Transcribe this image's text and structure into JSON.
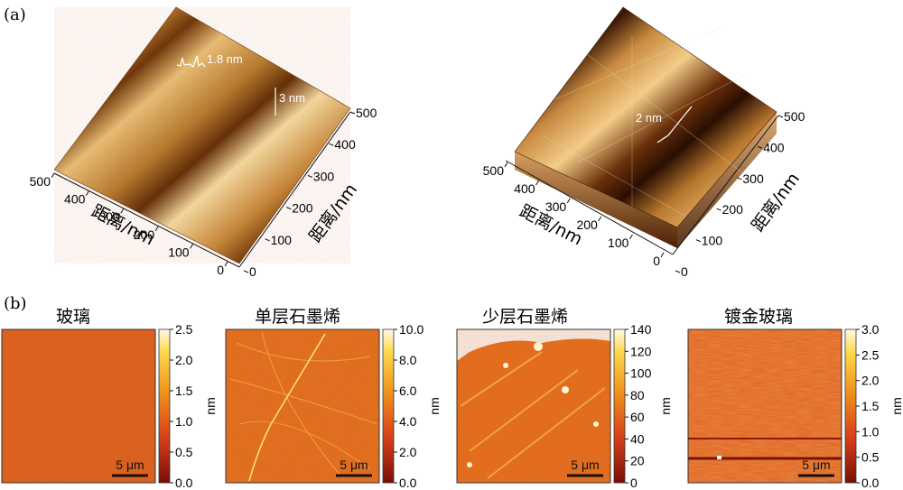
{
  "panel_a": {
    "label": "(a)",
    "left": {
      "annotations": [
        "1.8 nm",
        "3 nm"
      ],
      "axis_x": {
        "ticks": [
          "500",
          "400",
          "300",
          "200",
          "100",
          "0"
        ],
        "label": "距离/nm"
      },
      "axis_y": {
        "ticks": [
          "0",
          "100",
          "200",
          "300",
          "400",
          "500"
        ],
        "label": "距离/nm"
      }
    },
    "right": {
      "annotations": [
        "2 nm"
      ],
      "axis_x": {
        "ticks": [
          "500",
          "400",
          "300",
          "200",
          "100",
          "0"
        ],
        "label": "距离/nm"
      },
      "axis_y": {
        "ticks": [
          "0",
          "100",
          "200",
          "300",
          "400",
          "500"
        ],
        "label": "距离/nm"
      }
    }
  },
  "panel_b": {
    "label": "(b)",
    "maps": [
      {
        "title": "玻璃",
        "scale_bar": "5 μm",
        "unit": "nm",
        "ticks": [
          "2.5",
          "2.0",
          "1.5",
          "1.0",
          "0.5",
          "0.0"
        ]
      },
      {
        "title": "单层石墨烯",
        "scale_bar": "5 μm",
        "unit": "nm",
        "ticks": [
          "10.0",
          "8.0",
          "6.0",
          "4.0",
          "2.0",
          "0.0"
        ]
      },
      {
        "title": "少层石墨烯",
        "scale_bar": "5 μm",
        "unit": "nm",
        "ticks": [
          "140",
          "120",
          "100",
          "80",
          "60",
          "40",
          "20",
          "0"
        ]
      },
      {
        "title": "镀金玻璃",
        "scale_bar": "5 μm",
        "unit": "nm",
        "ticks": [
          "3.0",
          "2.5",
          "2.0",
          "1.5",
          "1.0",
          "0.5",
          "0.0"
        ]
      }
    ]
  },
  "colors": {
    "afm_dark": "#7a1a05",
    "afm_mid": "#e6731c",
    "afm_light": "#fff6c8",
    "bronze": "#b87a2a"
  }
}
